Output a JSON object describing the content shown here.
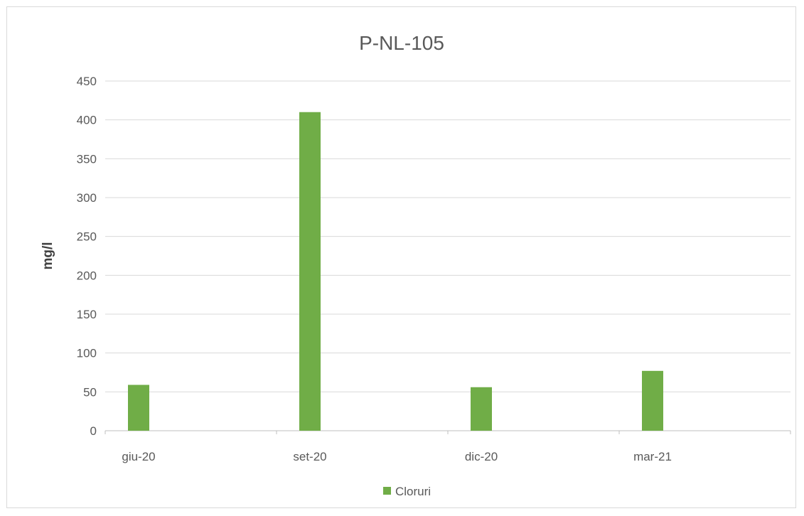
{
  "chart_data": {
    "type": "bar",
    "title": "P-NL-105",
    "xlabel": "",
    "ylabel": "mg/l",
    "categories": [
      "giu-20",
      "set-20",
      "dic-20",
      "mar-21"
    ],
    "series": [
      {
        "name": "Cloruri",
        "values": [
          59,
          410,
          56,
          77
        ],
        "color": "#70ad47"
      }
    ],
    "ylim": [
      0,
      450
    ],
    "yticks": [
      0,
      50,
      100,
      150,
      200,
      250,
      300,
      350,
      400,
      450
    ],
    "grid": true,
    "legend_position": "bottom"
  }
}
